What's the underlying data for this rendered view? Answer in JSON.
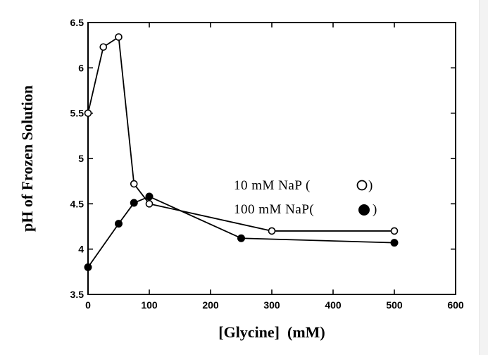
{
  "chart_data": {
    "type": "line",
    "xlabel": "[Glycine]  (mM)",
    "ylabel": "pH of Frozen Solution",
    "xlim": [
      0,
      600
    ],
    "ylim": [
      3.5,
      6.5
    ],
    "xticks": [
      0,
      100,
      200,
      300,
      400,
      500,
      600
    ],
    "yticks": [
      3.5,
      4,
      4.5,
      5,
      5.5,
      6,
      6.5
    ],
    "xtick_labels": [
      "0",
      "100",
      "200",
      "300",
      "400",
      "500",
      "600"
    ],
    "ytick_labels": [
      "3.5",
      "4",
      "4.5",
      "5",
      "5.5",
      "6",
      "6.5"
    ],
    "grid": false,
    "legend_position": "center-right",
    "legend": [
      {
        "label": "10 mM NaP (",
        "suffix": ")",
        "marker": "open-circle"
      },
      {
        "label": "100 mM NaP(",
        "suffix": ")",
        "marker": "filled-circle"
      }
    ],
    "series": [
      {
        "marker": "open-circle",
        "color": "#000000",
        "x": [
          0,
          25,
          50,
          75,
          100,
          300,
          500
        ],
        "y": [
          5.5,
          6.23,
          6.34,
          4.72,
          4.5,
          4.2,
          4.2
        ]
      },
      {
        "marker": "filled-circle",
        "color": "#000000",
        "x": [
          0,
          50,
          75,
          100,
          250,
          500
        ],
        "y": [
          3.8,
          4.28,
          4.51,
          4.58,
          4.12,
          4.07
        ]
      }
    ]
  }
}
